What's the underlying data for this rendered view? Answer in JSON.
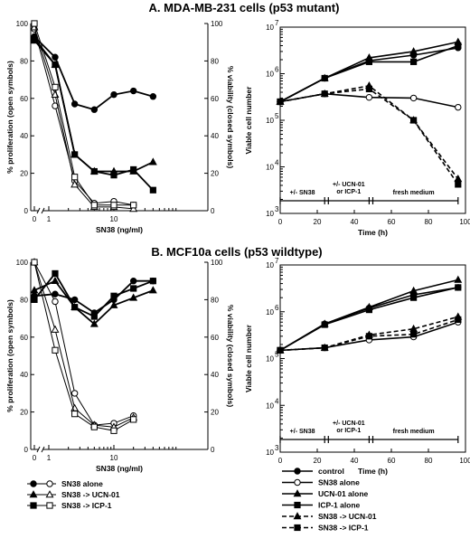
{
  "titles": {
    "a": "A. MDA-MB-231 cells (p53 mutant)",
    "b": "B. MCF10a cells (p53 wildtype)"
  },
  "dose_axis": {
    "xlabel": "SN38 (ng/ml)",
    "ylabel_left": "% proliferation (open symbols)",
    "ylabel_right": "% viability (closed symbols)",
    "xticks": [
      "0",
      "1",
      "10"
    ],
    "yticks": [
      "0",
      "20",
      "40",
      "60",
      "80",
      "100"
    ]
  },
  "time_axis": {
    "xlabel": "Time (h)",
    "ylabel": "Viable cell number",
    "xticks": [
      "0",
      "20",
      "40",
      "60",
      "80",
      "100"
    ],
    "yticks": [
      "10",
      "10",
      "10",
      "10",
      "10"
    ],
    "yexp": [
      "3",
      "4",
      "5",
      "6",
      "7"
    ]
  },
  "timeline_labels": {
    "a": [
      "+/- SN38",
      "+/- UCN-01 or ICP-1",
      "fresh medium"
    ],
    "b": [
      "+/- SN38",
      "+/- UCN-01 or ICP-1",
      "fresh medium"
    ]
  },
  "dose_legend": [
    {
      "label": "SN38 alone",
      "marker": "circle"
    },
    {
      "label": "SN38 -> UCN-01",
      "marker": "triangle"
    },
    {
      "label": "SN38 -> ICP-1",
      "marker": "square"
    }
  ],
  "time_legend": [
    {
      "label": "control",
      "marker": "circle",
      "filled": true,
      "dashed": false
    },
    {
      "label": "SN38 alone",
      "marker": "circle",
      "filled": false,
      "dashed": false
    },
    {
      "label": "UCN-01 alone",
      "marker": "triangle",
      "filled": true,
      "dashed": false
    },
    {
      "label": "ICP-1 alone",
      "marker": "square",
      "filled": true,
      "dashed": false
    },
    {
      "label": "SN38 -> UCN-01",
      "marker": "triangle",
      "filled": true,
      "dashed": true
    },
    {
      "label": "SN38 -> ICP-1",
      "marker": "square",
      "filled": true,
      "dashed": true
    }
  ],
  "chart_data": [
    {
      "type": "line",
      "panel": "A-dose",
      "x_axis": "SN38 (ng/ml), log scale with zero at left",
      "ylim": [
        0,
        100
      ],
      "series": [
        {
          "marker": "circle",
          "filled": false,
          "axis": "proliferation",
          "x": [
            0,
            1.25,
            2.5,
            5,
            10,
            20
          ],
          "values": [
            97,
            56,
            16,
            4,
            5,
            3
          ]
        },
        {
          "marker": "triangle",
          "filled": false,
          "axis": "proliferation",
          "x": [
            0,
            1.25,
            2.5,
            5,
            10,
            20
          ],
          "values": [
            98,
            62,
            14,
            2,
            2,
            1
          ]
        },
        {
          "marker": "square",
          "filled": false,
          "axis": "proliferation",
          "x": [
            0,
            1.25,
            2.5,
            5,
            10,
            20
          ],
          "values": [
            100,
            66,
            18,
            3,
            3,
            3
          ]
        },
        {
          "marker": "circle",
          "filled": true,
          "axis": "viability",
          "x": [
            0,
            1.25,
            2.5,
            5,
            10,
            20,
            40
          ],
          "values": [
            93,
            82,
            57,
            54,
            62,
            64,
            61
          ]
        },
        {
          "marker": "triangle",
          "filled": true,
          "axis": "viability",
          "x": [
            0,
            1.25,
            2.5,
            5,
            10,
            20,
            40
          ],
          "values": [
            92,
            78,
            30,
            21,
            21,
            21,
            26
          ]
        },
        {
          "marker": "square",
          "filled": true,
          "axis": "viability",
          "x": [
            0,
            1.25,
            2.5,
            5,
            10,
            20,
            40
          ],
          "values": [
            91,
            78,
            30,
            21,
            19,
            22,
            11
          ]
        }
      ]
    },
    {
      "type": "line",
      "panel": "A-time",
      "ylim": [
        1000,
        10000000
      ],
      "log_y": true,
      "series": [
        {
          "marker": "circle",
          "filled": true,
          "dashed": false,
          "x": [
            0,
            24,
            48,
            72,
            96
          ],
          "values": [
            250000,
            800000,
            1900000,
            2500000,
            3600000
          ]
        },
        {
          "marker": "circle",
          "filled": false,
          "dashed": false,
          "x": [
            0,
            24,
            48,
            72,
            96
          ],
          "values": [
            250000,
            370000,
            310000,
            300000,
            190000
          ]
        },
        {
          "marker": "triangle",
          "filled": true,
          "dashed": false,
          "x": [
            0,
            24,
            48,
            72,
            96
          ],
          "values": [
            250000,
            800000,
            2200000,
            3000000,
            4800000
          ]
        },
        {
          "marker": "square",
          "filled": true,
          "dashed": false,
          "x": [
            0,
            24,
            48,
            72,
            96
          ],
          "values": [
            250000,
            800000,
            1800000,
            1800000,
            4000000
          ]
        },
        {
          "marker": "triangle",
          "filled": true,
          "dashed": true,
          "x": [
            0,
            24,
            48,
            72,
            96
          ],
          "values": [
            250000,
            370000,
            550000,
            100000,
            5500
          ]
        },
        {
          "marker": "square",
          "filled": true,
          "dashed": true,
          "x": [
            0,
            24,
            48,
            72,
            96
          ],
          "values": [
            250000,
            370000,
            470000,
            100000,
            4200
          ]
        }
      ]
    },
    {
      "type": "line",
      "panel": "B-dose",
      "x_axis": "SN38 (ng/ml), log scale with zero at left",
      "ylim": [
        0,
        100
      ],
      "series": [
        {
          "marker": "circle",
          "filled": false,
          "axis": "proliferation",
          "x": [
            0,
            1.25,
            2.5,
            5,
            10,
            20
          ],
          "values": [
            100,
            79,
            30,
            13,
            14,
            18
          ]
        },
        {
          "marker": "triangle",
          "filled": false,
          "axis": "proliferation",
          "x": [
            0,
            1.25,
            2.5,
            5,
            10,
            20
          ],
          "values": [
            100,
            64,
            22,
            13,
            12,
            17
          ]
        },
        {
          "marker": "square",
          "filled": false,
          "axis": "proliferation",
          "x": [
            0,
            1.25,
            2.5,
            5,
            10,
            20
          ],
          "values": [
            100,
            53,
            19,
            12,
            10,
            16
          ]
        },
        {
          "marker": "circle",
          "filled": true,
          "axis": "viability",
          "x": [
            0,
            1.25,
            2.5,
            5,
            10,
            20,
            40
          ],
          "values": [
            82,
            83,
            80,
            73,
            80,
            90,
            90
          ]
        },
        {
          "marker": "triangle",
          "filled": true,
          "axis": "viability",
          "x": [
            0,
            1.25,
            2.5,
            5,
            10,
            20,
            40
          ],
          "values": [
            85,
            90,
            76,
            67,
            77,
            81,
            85
          ]
        },
        {
          "marker": "square",
          "filled": true,
          "axis": "viability",
          "x": [
            0,
            1.25,
            2.5,
            5,
            10,
            20,
            40
          ],
          "values": [
            80,
            94,
            76,
            71,
            82,
            86,
            90
          ]
        }
      ]
    },
    {
      "type": "line",
      "panel": "B-time",
      "ylim": [
        1000,
        10000000
      ],
      "log_y": true,
      "series": [
        {
          "marker": "circle",
          "filled": true,
          "dashed": false,
          "x": [
            0,
            24,
            48,
            72,
            96
          ],
          "values": [
            150000,
            550000,
            1200000,
            2300000,
            3300000
          ]
        },
        {
          "marker": "circle",
          "filled": false,
          "dashed": false,
          "x": [
            0,
            24,
            48,
            72,
            96
          ],
          "values": [
            150000,
            170000,
            250000,
            290000,
            600000
          ]
        },
        {
          "marker": "triangle",
          "filled": true,
          "dashed": false,
          "x": [
            0,
            24,
            48,
            72,
            96
          ],
          "values": [
            150000,
            550000,
            1250000,
            2800000,
            4800000
          ]
        },
        {
          "marker": "square",
          "filled": true,
          "dashed": false,
          "x": [
            0,
            24,
            48,
            72,
            96
          ],
          "values": [
            150000,
            530000,
            1100000,
            2000000,
            3300000
          ]
        },
        {
          "marker": "triangle",
          "filled": true,
          "dashed": true,
          "x": [
            0,
            24,
            48,
            72,
            96
          ],
          "values": [
            150000,
            170000,
            320000,
            430000,
            780000
          ]
        },
        {
          "marker": "square",
          "filled": true,
          "dashed": true,
          "x": [
            0,
            24,
            48,
            72,
            96
          ],
          "values": [
            150000,
            170000,
            300000,
            330000,
            680000
          ]
        }
      ]
    }
  ]
}
